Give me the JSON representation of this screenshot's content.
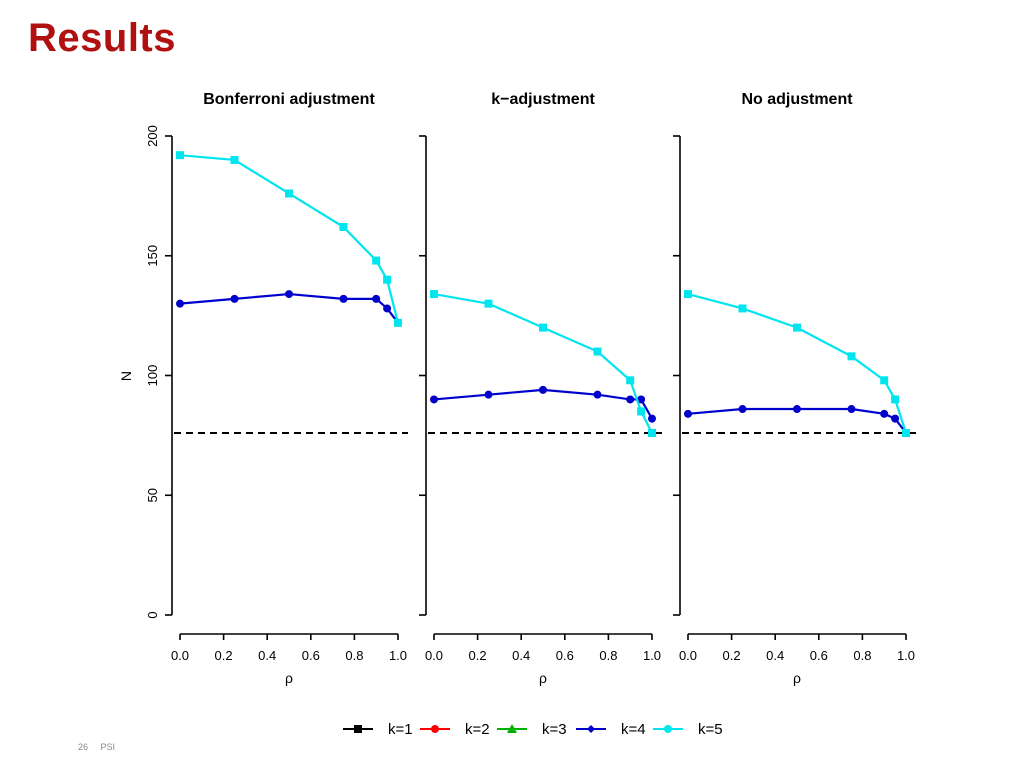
{
  "slide": {
    "title": "Results",
    "page_number": "26",
    "footer_text": "PSI"
  },
  "colors": {
    "title": "#b01010",
    "k1": "#000000",
    "k2": "#ff0000",
    "k3": "#00b000",
    "k4": "#0000cd",
    "k5": "#00e5ee",
    "reference_line": "#000000"
  },
  "chart_data": {
    "type": "line",
    "ylabel": "N",
    "xlabel": "ρ",
    "ylim": [
      0,
      200
    ],
    "xlim": [
      0.0,
      1.0
    ],
    "y_ticks": [
      "0",
      "50",
      "100",
      "150",
      "200"
    ],
    "x_ticks": [
      "0.0",
      "0.2",
      "0.4",
      "0.6",
      "0.8",
      "1.0"
    ],
    "reference_line_y": 76,
    "legend": {
      "position": "bottom",
      "entries": [
        {
          "label": "k=1",
          "marker": "square",
          "color": "#000000"
        },
        {
          "label": "k=2",
          "marker": "circle",
          "color": "#ff0000"
        },
        {
          "label": "k=3",
          "marker": "triangle",
          "color": "#00b000"
        },
        {
          "label": "k=4",
          "marker": "diamond",
          "color": "#0000cd"
        },
        {
          "label": "k=5",
          "marker": "circle",
          "color": "#00e5ee"
        }
      ]
    },
    "panels": [
      {
        "title": "Bonferroni adjustment",
        "series": [
          {
            "name": "k=4",
            "marker": "circle",
            "x": [
              0.0,
              0.25,
              0.5,
              0.75,
              0.9,
              0.95,
              1.0
            ],
            "y": [
              130,
              132,
              134,
              132,
              132,
              128,
              122
            ]
          },
          {
            "name": "k=5",
            "marker": "square",
            "x": [
              0.0,
              0.25,
              0.5,
              0.75,
              0.9,
              0.95,
              1.0
            ],
            "y": [
              192,
              190,
              176,
              162,
              148,
              140,
              122
            ]
          }
        ]
      },
      {
        "title": "k−adjustment",
        "series": [
          {
            "name": "k=4",
            "marker": "circle",
            "x": [
              0.0,
              0.25,
              0.5,
              0.75,
              0.9,
              0.95,
              1.0
            ],
            "y": [
              90,
              92,
              94,
              92,
              90,
              90,
              82
            ]
          },
          {
            "name": "k=5",
            "marker": "square",
            "x": [
              0.0,
              0.25,
              0.5,
              0.75,
              0.9,
              0.95,
              1.0
            ],
            "y": [
              134,
              130,
              120,
              110,
              98,
              85,
              76
            ]
          }
        ]
      },
      {
        "title": "No adjustment",
        "series": [
          {
            "name": "k=4",
            "marker": "circle",
            "x": [
              0.0,
              0.25,
              0.5,
              0.75,
              0.9,
              0.95,
              1.0
            ],
            "y": [
              84,
              86,
              86,
              86,
              84,
              82,
              76
            ]
          },
          {
            "name": "k=5",
            "marker": "square",
            "x": [
              0.0,
              0.25,
              0.5,
              0.75,
              0.9,
              0.95,
              1.0
            ],
            "y": [
              134,
              128,
              120,
              108,
              98,
              90,
              76
            ]
          }
        ]
      }
    ]
  }
}
